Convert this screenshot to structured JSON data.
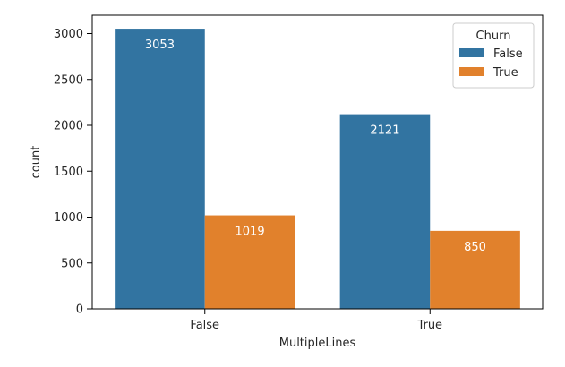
{
  "chart_data": {
    "type": "bar",
    "title": "",
    "xlabel": "MultipleLines",
    "ylabel": "count",
    "categories": [
      "False",
      "True"
    ],
    "ylim": [
      0,
      3200
    ],
    "yticks": [
      0,
      500,
      1000,
      1500,
      2000,
      2500,
      3000
    ],
    "grid": false,
    "legend": {
      "title": "Churn",
      "placement": "top-right"
    },
    "series": [
      {
        "name": "False",
        "color": "#3274a1",
        "values": [
          3053,
          2121
        ]
      },
      {
        "name": "True",
        "color": "#e1812c",
        "values": [
          1019,
          850
        ]
      }
    ]
  }
}
